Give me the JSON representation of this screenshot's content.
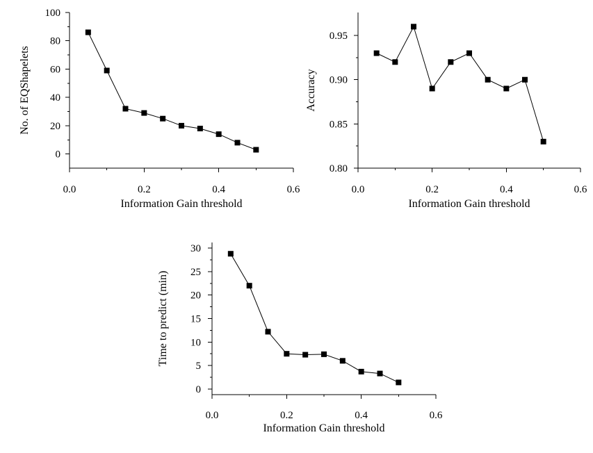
{
  "chart_data": [
    {
      "type": "line",
      "title": "",
      "xlabel": "Information Gain threshold",
      "ylabel": "No. of EQShapelets",
      "xlim": [
        0.0,
        0.6
      ],
      "ylim": [
        -10,
        100
      ],
      "xticks": [
        0.0,
        0.2,
        0.4,
        0.6
      ],
      "xtick_labels": [
        "0.0",
        "0.2",
        "0.4",
        "0.6"
      ],
      "yticks": [
        0,
        20,
        40,
        60,
        80,
        100
      ],
      "ytick_labels": [
        "0",
        "20",
        "40",
        "60",
        "80",
        "100"
      ],
      "series": [
        {
          "name": "EQShapelets",
          "x": [
            0.05,
            0.1,
            0.15,
            0.2,
            0.25,
            0.3,
            0.35,
            0.4,
            0.45,
            0.5
          ],
          "y": [
            86,
            59,
            32,
            29,
            25,
            20,
            18,
            14,
            8,
            3
          ]
        }
      ]
    },
    {
      "type": "line",
      "title": "",
      "xlabel": "Information Gain threshold",
      "ylabel": "Accuracy",
      "xlim": [
        0.0,
        0.6
      ],
      "ylim": [
        0.8,
        0.976
      ],
      "xticks": [
        0.0,
        0.2,
        0.4,
        0.6
      ],
      "xtick_labels": [
        "0.0",
        "0.2",
        "0.4",
        "0.6"
      ],
      "yticks": [
        0.8,
        0.85,
        0.9,
        0.95
      ],
      "ytick_labels": [
        "0.80",
        "0.85",
        "0.90",
        "0.95"
      ],
      "series": [
        {
          "name": "Accuracy",
          "x": [
            0.05,
            0.1,
            0.15,
            0.2,
            0.25,
            0.3,
            0.35,
            0.4,
            0.45,
            0.5
          ],
          "y": [
            0.93,
            0.92,
            0.96,
            0.89,
            0.92,
            0.93,
            0.9,
            0.89,
            0.9,
            0.83
          ]
        }
      ]
    },
    {
      "type": "line",
      "title": "",
      "xlabel": "Information Gain threshold",
      "ylabel": "Time to predict (min)",
      "xlim": [
        0.0,
        0.6
      ],
      "ylim": [
        -1.2,
        31.2
      ],
      "xticks": [
        0.0,
        0.2,
        0.4,
        0.6
      ],
      "xtick_labels": [
        "0.0",
        "0.2",
        "0.4",
        "0.6"
      ],
      "yticks": [
        0,
        5,
        10,
        15,
        20,
        25,
        30
      ],
      "ytick_labels": [
        "0",
        "5",
        "10",
        "15",
        "20",
        "25",
        "30"
      ],
      "series": [
        {
          "name": "Time",
          "x": [
            0.05,
            0.1,
            0.15,
            0.2,
            0.25,
            0.3,
            0.35,
            0.4,
            0.45,
            0.5
          ],
          "y": [
            28.8,
            22.0,
            12.2,
            7.5,
            7.3,
            7.4,
            6.0,
            3.7,
            3.3,
            1.4
          ]
        }
      ]
    }
  ]
}
